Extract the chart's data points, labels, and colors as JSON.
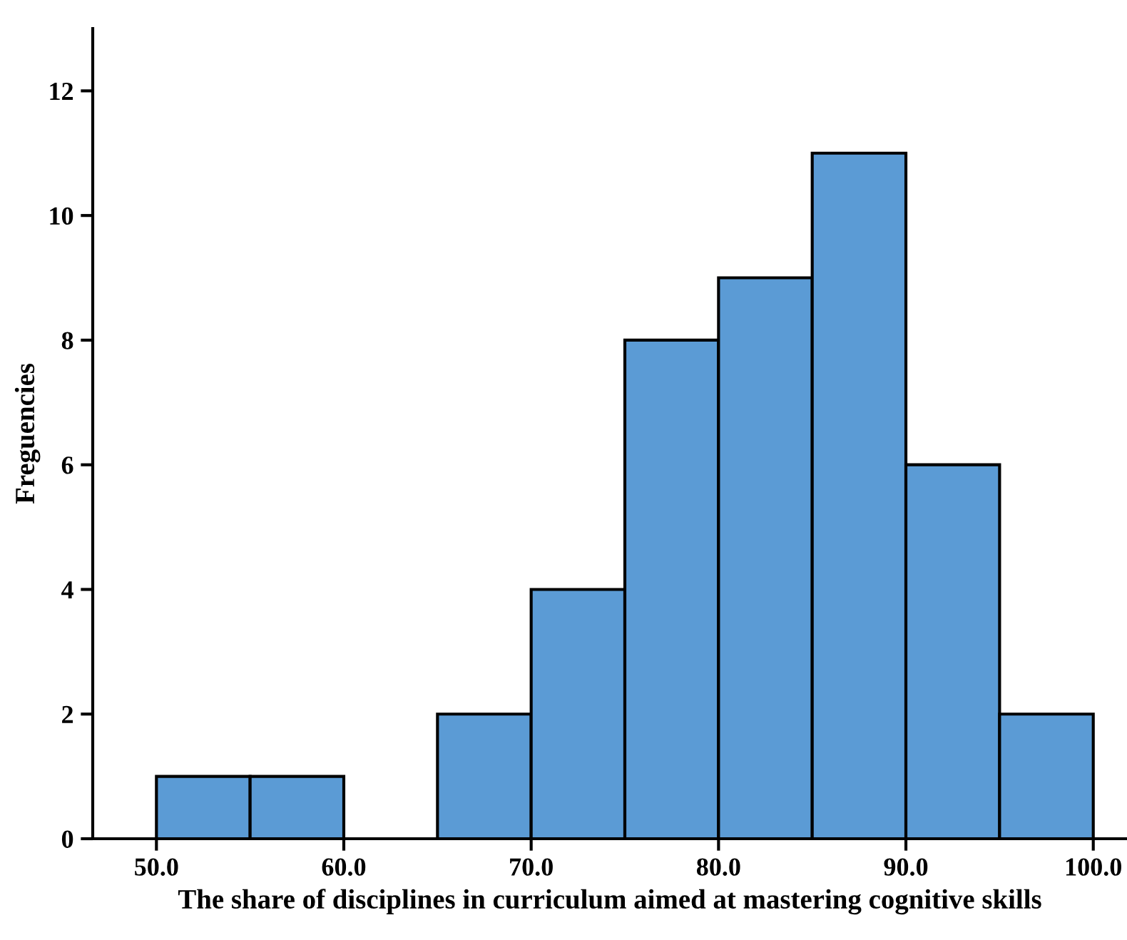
{
  "chart_data": {
    "type": "histogram",
    "xlabel": "The share of disciplines in curriculum aimed at mastering cognitive skills",
    "ylabel": "Freguencies",
    "bins": [
      50,
      55,
      60,
      65,
      70,
      75,
      80,
      85,
      90,
      95,
      100
    ],
    "values": [
      1,
      1,
      0,
      2,
      4,
      8,
      9,
      11,
      6,
      2
    ],
    "color": "#5b9bd5",
    "xlim": [
      46.6,
      101.8
    ],
    "ylim": [
      0,
      13
    ],
    "xticks": [
      {
        "value": 50,
        "label": "50.0"
      },
      {
        "value": 60,
        "label": "60.0"
      },
      {
        "value": 70,
        "label": "70.0"
      },
      {
        "value": 80,
        "label": "80.0"
      },
      {
        "value": 90,
        "label": "90.0"
      },
      {
        "value": 100,
        "label": "100.0"
      }
    ],
    "yticks": [
      0,
      2,
      4,
      6,
      8,
      10,
      12
    ],
    "grid": false
  }
}
